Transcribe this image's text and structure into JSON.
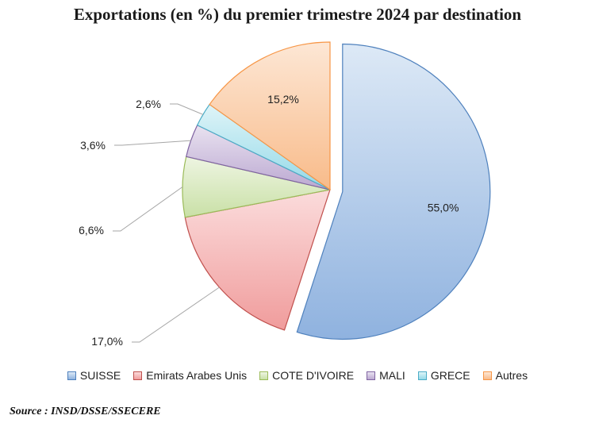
{
  "chart_data": {
    "type": "pie",
    "title": "Exportations (en %) du premier trimestre 2024 par destination",
    "slices": [
      {
        "name": "SUISSE",
        "value": 55.0,
        "label": "55,0%",
        "fill_light": "#dde9f6",
        "fill_dark": "#8fb2df",
        "stroke": "#4f81bd",
        "exploded": true
      },
      {
        "name": "Emirats Arabes Unis",
        "value": 17.0,
        "label": "17,0%",
        "fill_light": "#fbdcdc",
        "fill_dark": "#f09c9c",
        "stroke": "#c0504d"
      },
      {
        "name": "COTE D'IVOIRE",
        "value": 6.6,
        "label": "6,6%",
        "fill_light": "#eef5e2",
        "fill_dark": "#c9e0a6",
        "stroke": "#9bbb59"
      },
      {
        "name": "MALI",
        "value": 3.6,
        "label": "3,6%",
        "fill_light": "#e9e2f0",
        "fill_dark": "#bba8d1",
        "stroke": "#8064a2"
      },
      {
        "name": "GRECE",
        "value": 2.6,
        "label": "2,6%",
        "fill_light": "#dff4f8",
        "fill_dark": "#93d9e8",
        "stroke": "#4bacc6"
      },
      {
        "name": "Autres",
        "value": 15.2,
        "label": "15,2%",
        "fill_light": "#fde7d5",
        "fill_dark": "#f8bb8a",
        "stroke": "#f79646"
      }
    ],
    "legend_position": "bottom"
  },
  "source": "Source : INSD/DSSE/SSECERE"
}
